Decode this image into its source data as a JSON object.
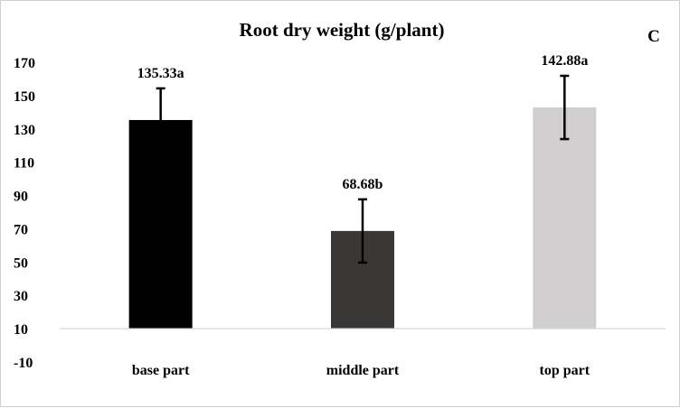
{
  "chart_data": {
    "type": "bar",
    "title": "Root dry weight (g/plant)",
    "panel_label": "C",
    "categories": [
      "base part",
      "middle part",
      "top part"
    ],
    "values": [
      135.33,
      68.68,
      142.88
    ],
    "errors": [
      19,
      19,
      19
    ],
    "data_labels": [
      "135.33a",
      "68.68b",
      "142.88a"
    ],
    "bar_colors": [
      "#000000",
      "#3a3836",
      "#d0cece"
    ],
    "ylim": [
      -10,
      170
    ],
    "yticks": [
      170,
      150,
      130,
      110,
      90,
      70,
      50,
      30,
      10,
      -10
    ],
    "xlabel": "",
    "ylabel": "",
    "grid": false,
    "legend": "none"
  }
}
